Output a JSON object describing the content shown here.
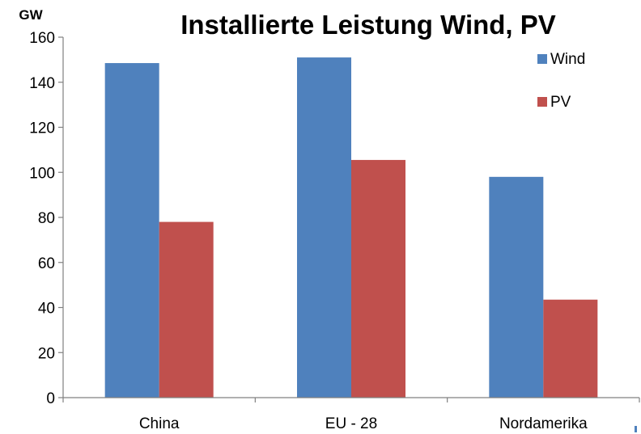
{
  "chart_data": {
    "type": "bar",
    "title": "Installierte Leistung Wind, PV",
    "ylabel": "GW",
    "xlabel": "",
    "categories": [
      "China",
      "EU - 28",
      "Nordamerika"
    ],
    "series": [
      {
        "name": "Wind",
        "values": [
          148.5,
          151,
          98
        ],
        "color": "#4f81bd"
      },
      {
        "name": "PV",
        "values": [
          78,
          105.5,
          43.5
        ],
        "color": "#c0504d"
      }
    ],
    "ylim": [
      0,
      160
    ],
    "yticks": [
      "0",
      "20",
      "40",
      "60",
      "80",
      "100",
      "120",
      "140",
      "160"
    ],
    "grid": false,
    "legend": "top-right"
  }
}
